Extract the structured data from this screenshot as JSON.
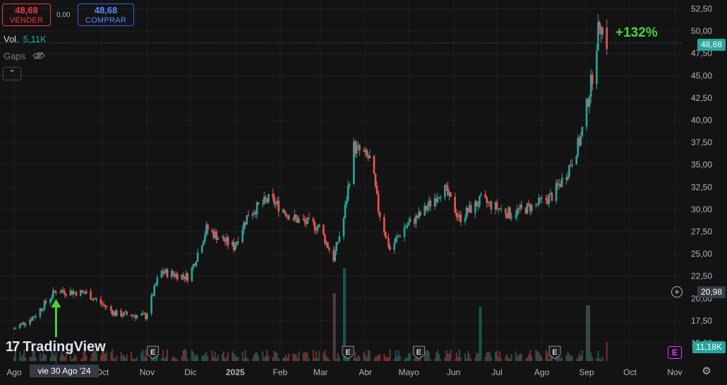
{
  "trade": {
    "sell_price": "48,68",
    "sell_label": "VENDER",
    "spread": "0,00",
    "buy_price": "48,68",
    "buy_label": "COMPRAR"
  },
  "legend": {
    "vol_label": "Vol.",
    "vol_value": "5,11K",
    "gaps_label": "Gaps"
  },
  "annotation": {
    "change": "+132%"
  },
  "price_axis": {
    "ticks": [
      "52,50",
      "50,00",
      "47,50",
      "45,00",
      "42,50",
      "40,00",
      "37,50",
      "35,00",
      "32,50",
      "30,00",
      "27,50",
      "25,00",
      "22,50",
      "20,00",
      "17,50",
      "15,00"
    ],
    "last_price": "48,68",
    "crosshair_price": "20,98",
    "last_volume": "11,18K"
  },
  "time_axis": {
    "labels": [
      "Ago",
      "Oct",
      "Nov",
      "Dic",
      "2025",
      "Feb",
      "Mar",
      "Abr",
      "Mayo",
      "Jun",
      "Jul",
      "Ago",
      "Sep",
      "Oct",
      "Nov"
    ],
    "crosshair_date": "vie 30 Ago '24"
  },
  "branding": {
    "logo_text": "TradingView"
  },
  "earnings_marker": "E",
  "colors": {
    "background": "#131313",
    "up": "#26a69a",
    "down": "#ef5350",
    "arrow": "#4cd137",
    "grid": "#1f1f1f"
  },
  "chart_data": {
    "type": "candlestick",
    "price_range": [
      15,
      52.5
    ],
    "grid": true,
    "last_price": 48.68,
    "change_annotation": "+132%",
    "marked_date": "vie 30 Ago '24",
    "anchors": [
      {
        "date": "2024-08-01",
        "close": 16.6
      },
      {
        "date": "2024-08-15",
        "close": 18.0
      },
      {
        "date": "2024-08-30",
        "close": 20.9
      },
      {
        "date": "2024-09-20",
        "close": 20.6
      },
      {
        "date": "2024-10-10",
        "close": 18.3
      },
      {
        "date": "2024-10-31",
        "close": 18.0
      },
      {
        "date": "2024-11-10",
        "close": 23.0
      },
      {
        "date": "2024-11-30",
        "close": 22.4
      },
      {
        "date": "2024-12-12",
        "close": 27.8
      },
      {
        "date": "2024-12-31",
        "close": 25.8
      },
      {
        "date": "2025-01-10",
        "close": 29.5
      },
      {
        "date": "2025-01-25",
        "close": 31.2
      },
      {
        "date": "2025-02-10",
        "close": 29.0
      },
      {
        "date": "2025-02-28",
        "close": 28.0
      },
      {
        "date": "2025-03-10",
        "close": 24.5
      },
      {
        "date": "2025-03-17",
        "close": 29.0
      },
      {
        "date": "2025-03-24",
        "close": 37.0
      },
      {
        "date": "2025-04-05",
        "close": 35.5
      },
      {
        "date": "2025-04-10",
        "close": 30.0
      },
      {
        "date": "2025-04-18",
        "close": 25.5
      },
      {
        "date": "2025-04-28",
        "close": 28.0
      },
      {
        "date": "2025-05-10",
        "close": 29.5
      },
      {
        "date": "2025-05-25",
        "close": 32.5
      },
      {
        "date": "2025-06-05",
        "close": 29.0
      },
      {
        "date": "2025-06-20",
        "close": 31.0
      },
      {
        "date": "2025-07-10",
        "close": 29.5
      },
      {
        "date": "2025-07-28",
        "close": 30.5
      },
      {
        "date": "2025-08-08",
        "close": 31.5
      },
      {
        "date": "2025-08-18",
        "close": 34.0
      },
      {
        "date": "2025-08-28",
        "close": 38.0
      },
      {
        "date": "2025-09-05",
        "close": 45.0
      },
      {
        "date": "2025-09-10",
        "close": 51.2
      },
      {
        "date": "2025-09-15",
        "close": 48.68
      }
    ],
    "volume_spikes": [
      {
        "date": "2025-03-10",
        "volume_k": 40
      },
      {
        "date": "2025-03-17",
        "volume_k": 55
      },
      {
        "date": "2025-06-20",
        "volume_k": 32
      },
      {
        "date": "2025-09-02",
        "volume_k": 33
      },
      {
        "date": "2025-09-15",
        "volume_k": 11.18
      }
    ],
    "earnings_dates": [
      "2024-11-05",
      "2025-03-20",
      "2025-05-08",
      "2025-08-10"
    ]
  }
}
